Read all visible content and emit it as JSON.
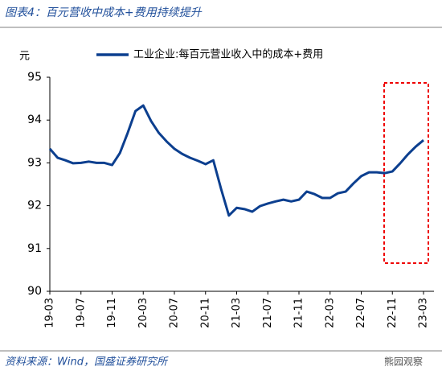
{
  "title": "图表4：百元营收中成本+费用持续提升",
  "source": "资料来源：Wind，国盛证券研究所",
  "watermark": "熊园观察",
  "chart_data": {
    "type": "line",
    "ylabel": "元",
    "categories": [
      "19-03",
      null,
      null,
      null,
      "19-07",
      null,
      null,
      null,
      "19-11",
      null,
      null,
      null,
      "20-03",
      null,
      null,
      null,
      "20-07",
      null,
      null,
      null,
      "20-11",
      null,
      null,
      null,
      "21-03",
      null,
      null,
      null,
      "21-07",
      null,
      null,
      null,
      "21-11",
      null,
      null,
      null,
      "22-03",
      null,
      null,
      null,
      "22-07",
      null,
      null,
      null,
      "22-11",
      null,
      null,
      null,
      "23-03"
    ],
    "series": [
      {
        "name": "工业企业:每百元营业收入中的成本+费用",
        "color": "#0c3f8f",
        "values": [
          93.33,
          93.12,
          93.06,
          92.99,
          93.0,
          93.03,
          93.0,
          93.0,
          92.95,
          93.23,
          93.7,
          94.21,
          94.34,
          93.98,
          93.7,
          93.5,
          93.33,
          93.21,
          93.12,
          93.05,
          92.97,
          93.06,
          92.39,
          91.77,
          91.95,
          91.92,
          91.86,
          91.99,
          92.05,
          92.1,
          92.14,
          92.1,
          92.14,
          92.33,
          92.27,
          92.18,
          92.18,
          92.29,
          92.33,
          92.52,
          92.69,
          92.78,
          92.78,
          92.76,
          92.8,
          92.99,
          93.2,
          93.38,
          93.53
        ]
      }
    ],
    "ylim": [
      90,
      95
    ],
    "yticks": [
      90,
      91,
      92,
      93,
      94,
      95
    ],
    "grid": false
  }
}
